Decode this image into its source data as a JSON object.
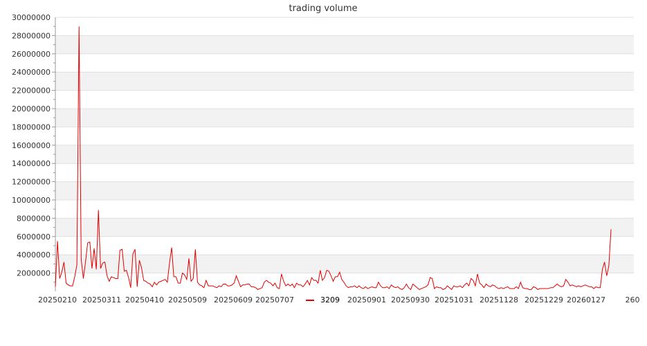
{
  "chart_data": {
    "type": "line",
    "title": "trading volume",
    "xlabel": "",
    "ylabel": "",
    "ylim": [
      0,
      30000000
    ],
    "y_ticks": [
      "2000000",
      "4000000",
      "6000000",
      "8000000",
      "10000000",
      "12000000",
      "14000000",
      "16000000",
      "18000000",
      "20000000",
      "22000000",
      "24000000",
      "26000000",
      "28000000",
      "30000000"
    ],
    "x_tick_labels": [
      "20250210",
      "20250311",
      "20250410",
      "20250509",
      "20250609",
      "20250707",
      "20250901",
      "20250930",
      "20251031",
      "20251128",
      "20251229",
      "20260127",
      "260"
    ],
    "grid": true,
    "legend_position": "bottom",
    "series": [
      {
        "name": "3209",
        "color": "#e00000",
        "values": [
          500000,
          5500000,
          1400000,
          2100000,
          3200000,
          900000,
          700000,
          600000,
          600000,
          1600000,
          2900000,
          29000000,
          3500000,
          1400000,
          3200000,
          5300000,
          5400000,
          2500000,
          4700000,
          2400000,
          8900000,
          2500000,
          3100000,
          3200000,
          1700000,
          1100000,
          1600000,
          1500000,
          1400000,
          1400000,
          4500000,
          4600000,
          2200000,
          2300000,
          1500000,
          400000,
          4100000,
          4600000,
          500000,
          3400000,
          2600000,
          1200000,
          1100000,
          900000,
          800000,
          500000,
          1000000,
          700000,
          1000000,
          1100000,
          1200000,
          1300000,
          1000000,
          3100000,
          4800000,
          1600000,
          1600000,
          900000,
          900000,
          2000000,
          1800000,
          1300000,
          3600000,
          1100000,
          1400000,
          4600000,
          1000000,
          700000,
          600000,
          400000,
          1200000,
          600000,
          600000,
          600000,
          500000,
          400000,
          600000,
          500000,
          800000,
          800000,
          600000,
          600000,
          700000,
          900000,
          1700000,
          1100000,
          500000,
          700000,
          700000,
          800000,
          800000,
          500000,
          500000,
          400000,
          200000,
          300000,
          400000,
          1000000,
          1200000,
          1000000,
          900000,
          600000,
          900000,
          400000,
          300000,
          1900000,
          1100000,
          600000,
          800000,
          600000,
          800000,
          400000,
          900000,
          700000,
          700000,
          500000,
          800000,
          1200000,
          700000,
          1500000,
          1200000,
          1200000,
          900000,
          2300000,
          1200000,
          1500000,
          2300000,
          2200000,
          1700000,
          1100000,
          1600000,
          1600000,
          2100000,
          1300000,
          1000000,
          600000,
          400000,
          500000,
          500000,
          600000,
          400000,
          600000,
          400000,
          300000,
          500000,
          300000,
          400000,
          500000,
          400000,
          400000,
          1000000,
          600000,
          400000,
          400000,
          500000,
          300000,
          700000,
          500000,
          400000,
          500000,
          300000,
          200000,
          400000,
          800000,
          400000,
          200000,
          800000,
          600000,
          400000,
          200000,
          300000,
          400000,
          500000,
          700000,
          1500000,
          1400000,
          300000,
          500000,
          400000,
          400000,
          200000,
          300000,
          600000,
          400000,
          200000,
          600000,
          500000,
          500000,
          600000,
          400000,
          700000,
          900000,
          600000,
          1400000,
          1200000,
          600000,
          1900000,
          900000,
          700000,
          400000,
          800000,
          600000,
          500000,
          700000,
          600000,
          400000,
          300000,
          400000,
          300000,
          400000,
          500000,
          300000,
          300000,
          300000,
          500000,
          300000,
          1000000,
          400000,
          300000,
          300000,
          200000,
          200000,
          500000,
          400000,
          200000,
          300000,
          300000,
          300000,
          300000,
          300000,
          400000,
          400000,
          600000,
          800000,
          600000,
          500000,
          600000,
          1300000,
          1000000,
          600000,
          700000,
          600000,
          500000,
          600000,
          500000,
          600000,
          700000,
          600000,
          500000,
          500000,
          300000,
          500000,
          400000,
          400000,
          2400000,
          3200000,
          1700000,
          2800000,
          6800000
        ]
      }
    ]
  }
}
